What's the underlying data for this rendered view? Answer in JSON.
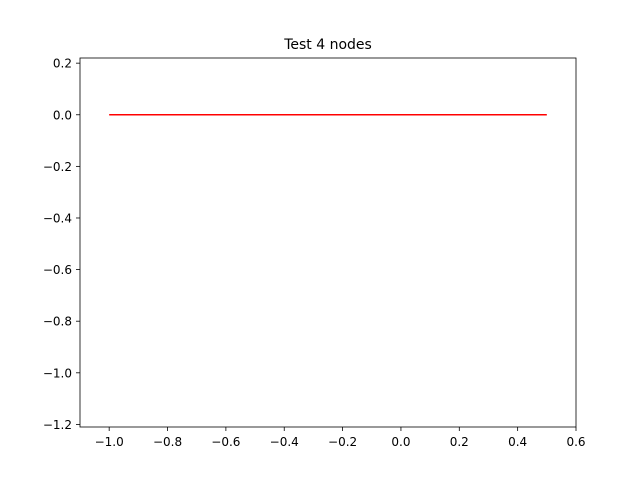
{
  "chart_data": {
    "type": "line",
    "title": "Test 4 nodes",
    "xlabel": "",
    "ylabel": "",
    "xlim": [
      -1.1,
      0.6
    ],
    "ylim": [
      -1.21,
      0.22
    ],
    "xticks": [
      -1.0,
      -0.8,
      -0.6,
      -0.4,
      -0.2,
      0.0,
      0.2,
      0.4,
      0.6
    ],
    "xtick_labels": [
      "−1.0",
      "−0.8",
      "−0.6",
      "−0.4",
      "−0.2",
      "0.0",
      "0.2",
      "0.4",
      "0.6"
    ],
    "yticks": [
      0.2,
      0.0,
      -0.2,
      -0.4,
      -0.6,
      -0.8,
      -1.0,
      -1.2
    ],
    "ytick_labels": [
      "0.2",
      "0.0",
      "−0.2",
      "−0.4",
      "−0.6",
      "−0.8",
      "−1.0",
      "−1.2"
    ],
    "grid": false,
    "series": [
      {
        "color": "#ff0000",
        "x": [
          -1.0,
          0.5
        ],
        "y": [
          0.0,
          0.0
        ]
      }
    ]
  }
}
